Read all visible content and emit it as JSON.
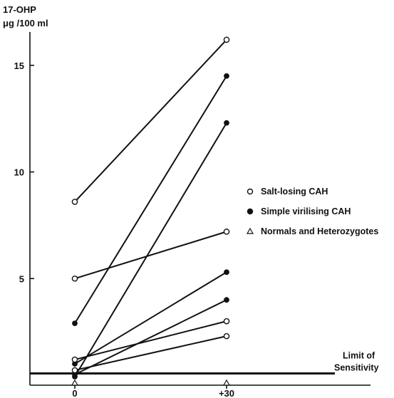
{
  "chart_data": {
    "type": "line",
    "ylabel_line1": "17-OHP",
    "ylabel_line2": "μg /100 ml",
    "x_ticks": [
      "0",
      "+30"
    ],
    "x_values": [
      0,
      30
    ],
    "y_ticks": [
      5,
      10,
      15
    ],
    "ylim": [
      0,
      17
    ],
    "limit_of_sensitivity": {
      "value": 0.55,
      "label_line1": "Limit of",
      "label_line2": "Sensitivity"
    },
    "legend": [
      {
        "name": "Salt-losing CAH",
        "marker": "open-circle"
      },
      {
        "name": "Simple virilising CAH",
        "marker": "filled-circle"
      },
      {
        "name": "Normals and Heterozygotes",
        "marker": "open-triangle"
      }
    ],
    "series": [
      {
        "group": "Salt-losing CAH",
        "marker": "open-circle",
        "values": [
          8.6,
          16.2
        ]
      },
      {
        "group": "Simple virilising CAH",
        "marker": "filled-circle",
        "values": [
          2.9,
          14.5
        ]
      },
      {
        "group": "Simple virilising CAH",
        "marker": "filled-circle",
        "values": [
          0.4,
          12.3
        ]
      },
      {
        "group": "Salt-losing CAH",
        "marker": "open-circle",
        "values": [
          5.0,
          7.2
        ]
      },
      {
        "group": "Simple virilising CAH",
        "marker": "filled-circle",
        "values": [
          1.0,
          5.3
        ]
      },
      {
        "group": "Simple virilising CAH",
        "marker": "filled-circle",
        "values": [
          0.5,
          4.0
        ]
      },
      {
        "group": "Salt-losing CAH",
        "marker": "open-circle",
        "values": [
          1.2,
          3.0
        ]
      },
      {
        "group": "Salt-losing CAH",
        "marker": "open-circle",
        "values": [
          0.7,
          2.3
        ]
      },
      {
        "group": "Normals and Heterozygotes",
        "marker": "open-triangle",
        "values": [
          0.05,
          0.05
        ]
      }
    ]
  }
}
